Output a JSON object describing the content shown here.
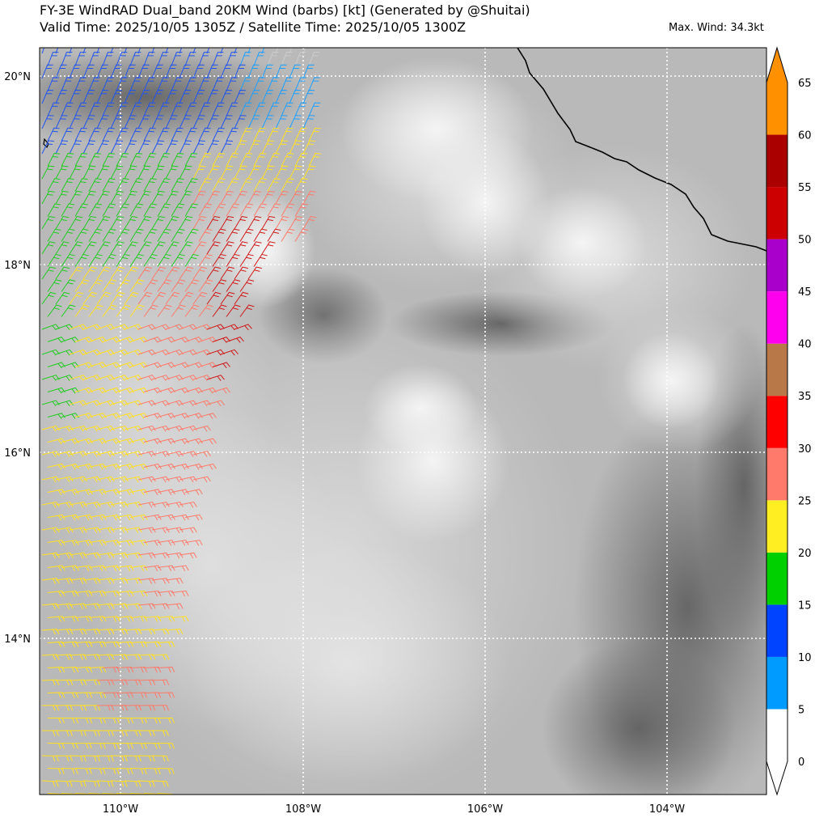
{
  "header": {
    "title_line1": "FY-3E WindRAD Dual_band 20KM Wind (barbs) [kt] (Generated by @Shuitai)",
    "title_line2": "Valid Time: 2025/10/05 1305Z / Satellite Time: 2025/10/05 1300Z",
    "max_wind": "Max. Wind: 34.3kt"
  },
  "map": {
    "lat_labels": [
      "20°N",
      "18°N",
      "16°N",
      "14°N"
    ],
    "lon_labels": [
      "110°W",
      "108°W",
      "106°W",
      "104°W"
    ]
  },
  "colorbar": {
    "tick_labels": [
      "0",
      "5",
      "10",
      "15",
      "20",
      "25",
      "30",
      "35",
      "40",
      "45",
      "50",
      "55",
      "60",
      "65"
    ],
    "colors": [
      "#ffffff",
      "#009bff",
      "#0044ff",
      "#00d000",
      "#ffee22",
      "#ff7a6a",
      "#ff0000",
      "#b87848",
      "#ff00ee",
      "#aa00cc",
      "#cc0000",
      "#aa0000",
      "#ff9000"
    ]
  }
}
